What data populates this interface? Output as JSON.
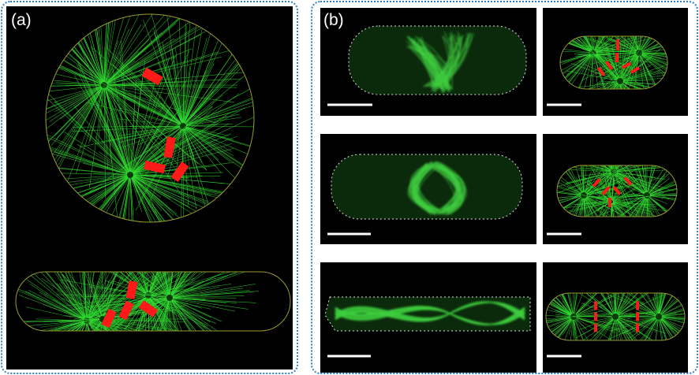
{
  "panel_a": {
    "label": "(a)"
  },
  "panel_b": {
    "label": "(b)"
  },
  "colors": {
    "border": "#2f7fc8",
    "microtubule": "#33dd33",
    "motor": "#ff1a1a",
    "cell_outline": "#9a9a30",
    "background": "#000000"
  }
}
